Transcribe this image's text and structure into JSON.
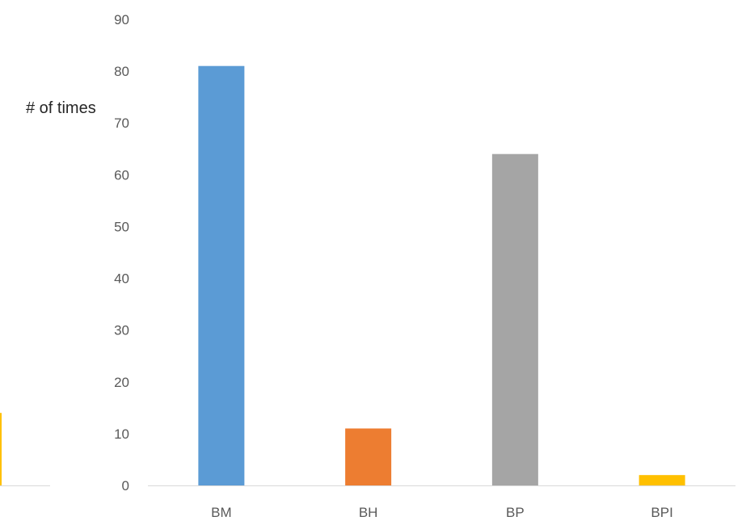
{
  "chart_data": {
    "type": "bar",
    "categories": [
      "BM",
      "BH",
      "BP",
      "BPI"
    ],
    "values": [
      81,
      11,
      64,
      2
    ],
    "colors": [
      "#5B9BD5",
      "#ED7D31",
      "#A5A5A5",
      "#FFC000"
    ],
    "ylabel": "# of times",
    "xlabel": "",
    "ylim": [
      0,
      90
    ],
    "yticks": [
      0,
      10,
      20,
      30,
      40,
      50,
      60,
      70,
      80,
      90
    ],
    "grid": false,
    "axis_color": "#D9D9D9",
    "partial_left_chart": {
      "value": 14,
      "color": "#FFC000"
    }
  }
}
